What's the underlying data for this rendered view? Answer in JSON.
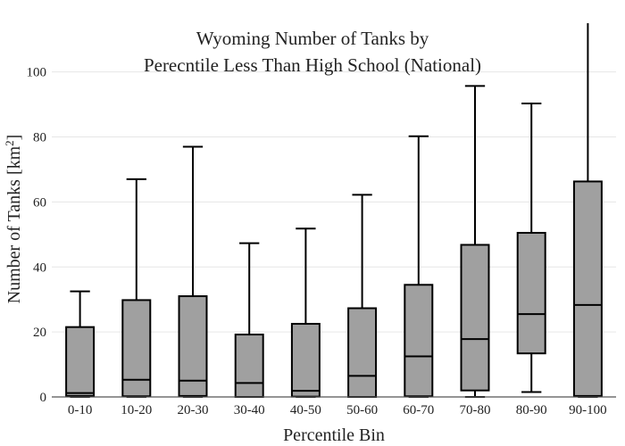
{
  "chart_data": {
    "type": "box",
    "title_lines": [
      "Wyoming Number of Tanks by",
      "Perecntile Less Than High School (National)"
    ],
    "xlabel": "Percentile Bin",
    "ylabel_text": "Number of Tanks  [km",
    "ylabel_superscript": "2",
    "ylabel_close": "]",
    "ylim": [
      0,
      115
    ],
    "yticks": [
      0,
      20,
      40,
      60,
      80,
      100
    ],
    "grid": true,
    "box_color": "#a0a0a0",
    "categories": [
      "0-10",
      "10-20",
      "20-30",
      "30-40",
      "40-50",
      "50-60",
      "60-70",
      "70-80",
      "80-90",
      "90-100"
    ],
    "boxes": [
      {
        "min": 0,
        "q1": 0.3,
        "median": 1.2,
        "q3": 21.5,
        "max": 32.5
      },
      {
        "min": 0,
        "q1": 0.2,
        "median": 5.3,
        "q3": 29.8,
        "max": 67
      },
      {
        "min": 0,
        "q1": 0.3,
        "median": 5.0,
        "q3": 31.0,
        "max": 77
      },
      {
        "min": 0,
        "q1": 0,
        "median": 4.3,
        "q3": 19.2,
        "max": 47.3
      },
      {
        "min": 0,
        "q1": 0.1,
        "median": 1.9,
        "q3": 22.5,
        "max": 51.8
      },
      {
        "min": 0,
        "q1": 0,
        "median": 6.5,
        "q3": 27.3,
        "max": 62.2
      },
      {
        "min": 0,
        "q1": 0.2,
        "median": 12.5,
        "q3": 34.5,
        "max": 80.2
      },
      {
        "min": 0,
        "q1": 2.0,
        "median": 17.8,
        "q3": 46.8,
        "max": 95.7
      },
      {
        "min": 1.5,
        "q1": 13.4,
        "median": 25.5,
        "q3": 50.5,
        "max": 90.3
      },
      {
        "min": 0,
        "q1": 0.3,
        "median": 28.3,
        "q3": 66.3,
        "max": 115
      }
    ]
  }
}
